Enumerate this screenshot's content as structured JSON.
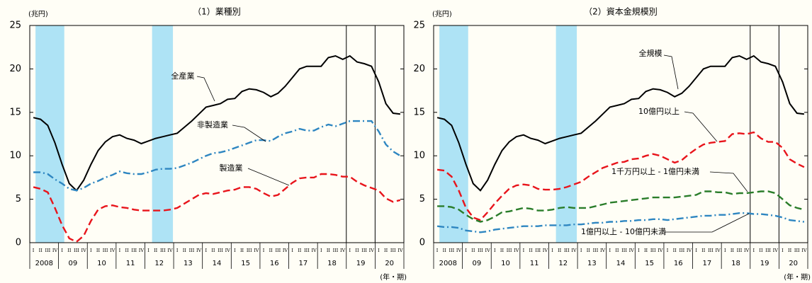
{
  "chart_data": [
    {
      "type": "line",
      "title": "（1）業種別",
      "y_unit": "(兆円)",
      "x_unit": "(年・期)",
      "categories": [
        "I",
        "II",
        "III",
        "IV",
        "I",
        "II",
        "III",
        "IV",
        "I",
        "II",
        "III",
        "IV",
        "I",
        "II",
        "III",
        "IV",
        "I",
        "II",
        "III",
        "IV",
        "I",
        "II",
        "III",
        "IV",
        "I",
        "II",
        "III",
        "IV",
        "I",
        "II",
        "III",
        "IV",
        "I",
        "II",
        "III",
        "IV",
        "I",
        "II",
        "III",
        "IV",
        "I",
        "II",
        "III",
        "IV",
        "I",
        "II",
        "III",
        "IV",
        "I",
        "II",
        "III",
        "IV"
      ],
      "year_labels": [
        "2008",
        "09",
        "10",
        "11",
        "12",
        "13",
        "14",
        "15",
        "16",
        "17",
        "18",
        "19",
        "20"
      ],
      "ylim": [
        0,
        25
      ],
      "yticks": [
        0,
        5,
        10,
        15,
        20,
        25
      ],
      "series": [
        {
          "name": "全産業",
          "color": "#000000",
          "dash": "solid",
          "values": [
            14.4,
            14.2,
            13.5,
            11.5,
            9,
            6.8,
            6.0,
            7.2,
            9,
            10.6,
            11.6,
            12.2,
            12.4,
            12.0,
            11.8,
            11.4,
            11.7,
            12.0,
            12.2,
            12.4,
            12.6,
            13.3,
            14.0,
            14.8,
            15.6,
            15.8,
            16.0,
            16.5,
            16.6,
            17.4,
            17.7,
            17.6,
            17.3,
            16.8,
            17.2,
            18.0,
            19.0,
            20.0,
            20.3,
            20.3,
            20.3,
            21.3,
            21.5,
            21.1,
            21.5,
            20.8,
            20.6,
            20.3,
            18.5,
            16.0,
            14.9,
            14.8
          ]
        },
        {
          "name": "非製造業",
          "color": "#2e86c1",
          "dash": "dashdot",
          "values": [
            8.1,
            8.1,
            7.9,
            7.3,
            6.8,
            6.2,
            6.0,
            6.3,
            6.8,
            7.1,
            7.5,
            7.8,
            8.2,
            8.0,
            7.9,
            7.9,
            8.1,
            8.4,
            8.5,
            8.5,
            8.6,
            8.9,
            9.2,
            9.6,
            10.0,
            10.3,
            10.4,
            10.6,
            10.9,
            11.2,
            11.5,
            11.8,
            11.8,
            11.7,
            12.2,
            12.6,
            12.8,
            13.1,
            12.9,
            12.9,
            13.3,
            13.6,
            13.4,
            13.7,
            14.0,
            14.0,
            14.0,
            14.0,
            12.8,
            11.3,
            10.5,
            10.0
          ]
        },
        {
          "name": "製造業",
          "color": "#e8141b",
          "dash": "dashed",
          "values": [
            6.4,
            6.2,
            5.8,
            4.0,
            2.0,
            0.5,
            0.1,
            0.8,
            2.5,
            3.8,
            4.2,
            4.3,
            4.1,
            4.0,
            3.8,
            3.7,
            3.7,
            3.7,
            3.7,
            3.8,
            4.0,
            4.5,
            5.0,
            5.5,
            5.7,
            5.6,
            5.8,
            6.0,
            6.1,
            6.4,
            6.4,
            6.2,
            5.7,
            5.3,
            5.5,
            6.2,
            6.9,
            7.4,
            7.5,
            7.5,
            7.9,
            7.9,
            7.8,
            7.6,
            7.6,
            7.0,
            6.6,
            6.3,
            6.0,
            5.1,
            4.7,
            4.9
          ]
        }
      ]
    },
    {
      "type": "line",
      "title": "（2）資本金規模別",
      "y_unit": "(兆円)",
      "x_unit": "(年・期)",
      "categories": [
        "I",
        "II",
        "III",
        "IV",
        "I",
        "II",
        "III",
        "IV",
        "I",
        "II",
        "III",
        "IV",
        "I",
        "II",
        "III",
        "IV",
        "I",
        "II",
        "III",
        "IV",
        "I",
        "II",
        "III",
        "IV",
        "I",
        "II",
        "III",
        "IV",
        "I",
        "II",
        "III",
        "IV",
        "I",
        "II",
        "III",
        "IV",
        "I",
        "II",
        "III",
        "IV",
        "I",
        "II",
        "III",
        "IV",
        "I",
        "II",
        "III",
        "IV",
        "I",
        "II",
        "III",
        "IV"
      ],
      "year_labels": [
        "2008",
        "09",
        "10",
        "11",
        "12",
        "13",
        "14",
        "15",
        "16",
        "17",
        "18",
        "19",
        "20"
      ],
      "ylim": [
        0,
        25
      ],
      "yticks": [
        0,
        5,
        10,
        15,
        20,
        25
      ],
      "series": [
        {
          "name": "全規模",
          "color": "#000000",
          "dash": "solid",
          "values": [
            14.4,
            14.2,
            13.5,
            11.5,
            9,
            6.8,
            6.0,
            7.2,
            9,
            10.6,
            11.6,
            12.2,
            12.4,
            12.0,
            11.8,
            11.4,
            11.7,
            12.0,
            12.2,
            12.4,
            12.6,
            13.3,
            14.0,
            14.8,
            15.6,
            15.8,
            16.0,
            16.5,
            16.6,
            17.4,
            17.7,
            17.6,
            17.3,
            16.8,
            17.2,
            18.0,
            19.0,
            20.0,
            20.3,
            20.3,
            20.3,
            21.3,
            21.5,
            21.1,
            21.5,
            20.8,
            20.6,
            20.3,
            18.5,
            16.0,
            14.9,
            14.8
          ]
        },
        {
          "name": "10億円以上",
          "color": "#e8141b",
          "dash": "dashed",
          "values": [
            8.4,
            8.3,
            7.6,
            6.0,
            4.0,
            2.9,
            2.6,
            3.5,
            4.5,
            5.4,
            6.2,
            6.6,
            6.7,
            6.6,
            6.2,
            6.1,
            6.1,
            6.2,
            6.4,
            6.7,
            7.0,
            7.6,
            8.1,
            8.6,
            8.9,
            9.2,
            9.3,
            9.6,
            9.7,
            10.0,
            10.2,
            10.0,
            9.6,
            9.2,
            9.5,
            10.2,
            10.8,
            11.3,
            11.5,
            11.6,
            11.7,
            12.5,
            12.6,
            12.5,
            12.7,
            12.0,
            11.6,
            11.6,
            10.9,
            9.6,
            9.1,
            8.7
          ]
        },
        {
          "name": "1千万円以上 - 1億円未満",
          "color": "#2a7d2a",
          "dash": "dashed",
          "values": [
            4.2,
            4.2,
            4.1,
            3.8,
            3.2,
            2.7,
            2.4,
            2.6,
            3.0,
            3.5,
            3.6,
            3.8,
            4.0,
            3.9,
            3.7,
            3.7,
            3.8,
            4.0,
            4.1,
            4.0,
            4.0,
            4.0,
            4.2,
            4.4,
            4.6,
            4.7,
            4.8,
            4.9,
            5.0,
            5.1,
            5.2,
            5.2,
            5.2,
            5.2,
            5.3,
            5.4,
            5.5,
            5.9,
            5.9,
            5.8,
            5.8,
            5.6,
            5.7,
            5.7,
            5.8,
            5.9,
            5.9,
            5.7,
            5.0,
            4.3,
            4.0,
            3.8
          ]
        },
        {
          "name": "1億円以上 - 10億円未満",
          "color": "#2e86c1",
          "dash": "dashdot",
          "values": [
            1.9,
            1.8,
            1.8,
            1.7,
            1.4,
            1.3,
            1.2,
            1.3,
            1.5,
            1.6,
            1.7,
            1.8,
            1.9,
            1.9,
            1.9,
            2.0,
            2.0,
            2.0,
            2.0,
            2.1,
            2.1,
            2.2,
            2.3,
            2.3,
            2.4,
            2.4,
            2.5,
            2.5,
            2.6,
            2.6,
            2.7,
            2.7,
            2.6,
            2.7,
            2.8,
            2.9,
            3.0,
            3.1,
            3.1,
            3.2,
            3.2,
            3.3,
            3.4,
            3.4,
            3.3,
            3.3,
            3.2,
            3.1,
            2.9,
            2.6,
            2.5,
            2.4
          ]
        }
      ]
    }
  ]
}
